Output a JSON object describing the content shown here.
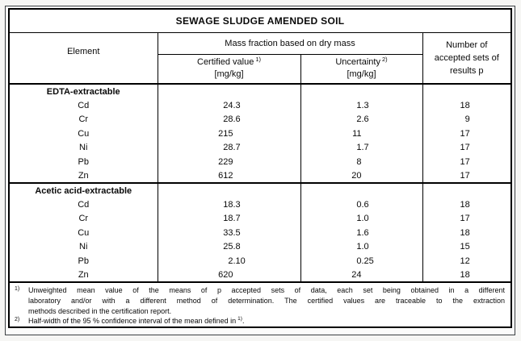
{
  "page": {
    "background": "#f6f6f4",
    "frame_border_color": "#3c4043",
    "table_border_color": "#000000",
    "table_background": "#ffffff",
    "text_color": "#0a0a0a"
  },
  "title": "SEWAGE SLUDGE AMENDED SOIL",
  "header": {
    "element": "Element",
    "mass_fraction": "Mass fraction based on dry mass",
    "certified": {
      "label": "Certified value",
      "sup": "1)",
      "unit": "[mg/kg]"
    },
    "uncertainty": {
      "label": "Uncertainty",
      "sup": "2)",
      "unit": "[mg/kg]"
    },
    "accepted_sets": "Number of accepted sets of results p"
  },
  "sections": [
    {
      "header": "EDTA-extractable",
      "rows": [
        {
          "element": "Cd",
          "certified": "24.3",
          "uncertainty": "1.3",
          "p": "18"
        },
        {
          "element": "Cr",
          "certified": "28.6",
          "uncertainty": "2.6",
          "p": "9"
        },
        {
          "element": "Cu",
          "certified": "215",
          "uncertainty": "11",
          "p": "17"
        },
        {
          "element": "Ni",
          "certified": "28.7",
          "uncertainty": "1.7",
          "p": "17"
        },
        {
          "element": "Pb",
          "certified": "229",
          "uncertainty": "8",
          "p": "17"
        },
        {
          "element": "Zn",
          "certified": "612",
          "uncertainty": "20",
          "p": "17"
        }
      ]
    },
    {
      "header": "Acetic acid-extractable",
      "rows": [
        {
          "element": "Cd",
          "certified": "18.3",
          "uncertainty": "0.6",
          "p": "18"
        },
        {
          "element": "Cr",
          "certified": "18.7",
          "uncertainty": "1.0",
          "p": "17"
        },
        {
          "element": "Cu",
          "certified": "33.5",
          "uncertainty": "1.6",
          "p": "18"
        },
        {
          "element": "Ni",
          "certified": "25.8",
          "uncertainty": "1.0",
          "p": "15"
        },
        {
          "element": "Pb",
          "certified": "2.10",
          "uncertainty": "0.25",
          "p": "12"
        },
        {
          "element": "Zn",
          "certified": "620",
          "uncertainty": "24",
          "p": "18"
        }
      ]
    }
  ],
  "footnotes": [
    {
      "marker": "1)",
      "lines": [
        "Unweighted mean value of the means of p accepted sets of data, each set being obtained in a different",
        "laboratory and/or with a different method of determination. The certified values are traceable to the extraction",
        "methods described in the certification report."
      ]
    },
    {
      "marker": "2)",
      "text": "Half-width of the 95 % confidence interval of the mean defined in",
      "sup": "1)",
      "suffix": "."
    }
  ]
}
